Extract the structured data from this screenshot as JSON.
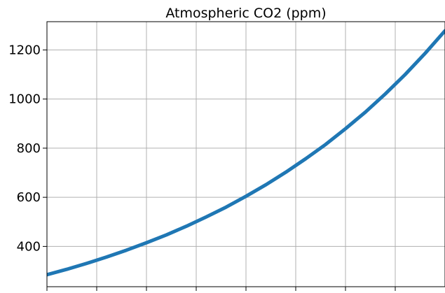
{
  "chart_data": {
    "type": "line",
    "title": "Atmospheric CO2 (ppm)",
    "xlabel": "",
    "ylabel": "",
    "ylim": [
      236,
      1315
    ],
    "xlim": [
      0,
      100
    ],
    "yticks": [
      400,
      600,
      800,
      1000,
      1200
    ],
    "xticks": [
      0,
      12.5,
      25,
      37.5,
      50,
      62.5,
      75,
      87.5
    ],
    "grid": true,
    "series": [
      {
        "color": "#1f77b4",
        "x": [
          0,
          5,
          10,
          15,
          20,
          25,
          30,
          35,
          40,
          45,
          50,
          55,
          60,
          65,
          70,
          75,
          80,
          85,
          90,
          95,
          100
        ],
        "y": [
          285,
          307,
          331,
          357,
          385,
          415,
          447,
          482,
          520,
          560,
          604,
          651,
          702,
          757,
          815,
          879,
          947,
          1021,
          1100,
          1186,
          1278
        ]
      }
    ]
  }
}
